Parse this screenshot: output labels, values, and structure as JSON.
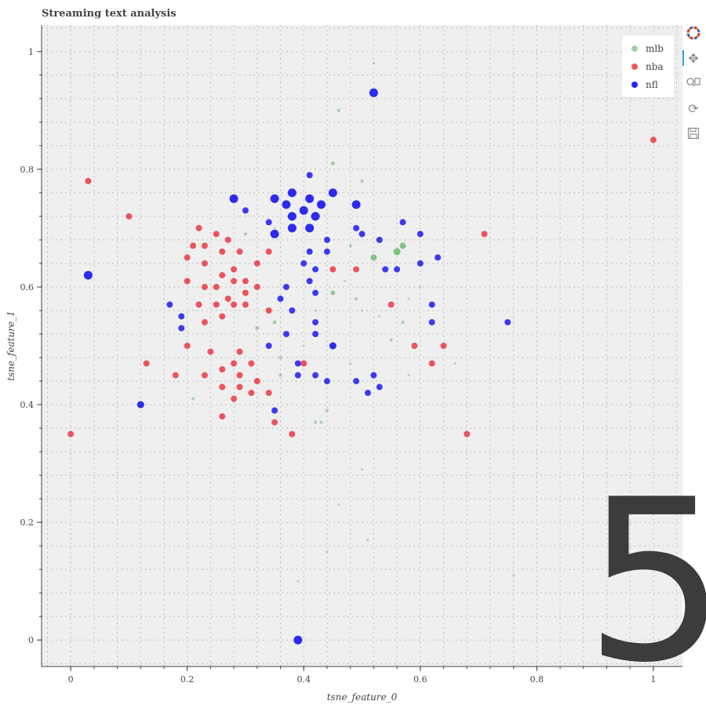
{
  "chart_data": {
    "type": "scatter",
    "title": "Streaming text analysis",
    "xlabel": "tsne_feature_0",
    "ylabel": "tsne_feature_1",
    "xlim": [
      -0.05,
      1.05
    ],
    "ylim": [
      -0.045,
      1.045
    ],
    "x_ticks": [
      "0",
      "0.2",
      "0.4",
      "0.6",
      "0.8",
      "1"
    ],
    "y_ticks": [
      "0",
      "0.2",
      "0.4",
      "0.6",
      "0.8",
      "1"
    ],
    "grid": true,
    "legend_position": "top-right",
    "series": [
      {
        "name": "mlb",
        "color": "#7fbf7f",
        "points": [
          {
            "x": 0.46,
            "y": 0.9,
            "size": 4
          },
          {
            "x": 0.45,
            "y": 0.81,
            "size": 5
          },
          {
            "x": 0.5,
            "y": 0.78,
            "size": 4
          },
          {
            "x": 0.52,
            "y": 0.65,
            "size": 8
          },
          {
            "x": 0.56,
            "y": 0.66,
            "size": 9
          },
          {
            "x": 0.57,
            "y": 0.67,
            "size": 8
          },
          {
            "x": 0.45,
            "y": 0.59,
            "size": 6
          },
          {
            "x": 0.49,
            "y": 0.58,
            "size": 4
          },
          {
            "x": 0.35,
            "y": 0.54,
            "size": 5
          },
          {
            "x": 0.32,
            "y": 0.53,
            "size": 5
          },
          {
            "x": 0.55,
            "y": 0.51,
            "size": 4
          },
          {
            "x": 0.57,
            "y": 0.54,
            "size": 4
          },
          {
            "x": 0.36,
            "y": 0.48,
            "size": 4
          },
          {
            "x": 0.36,
            "y": 0.45,
            "size": 4
          },
          {
            "x": 0.42,
            "y": 0.37,
            "size": 4
          },
          {
            "x": 0.43,
            "y": 0.37,
            "size": 4
          },
          {
            "x": 0.44,
            "y": 0.39,
            "size": 4
          },
          {
            "x": 0.21,
            "y": 0.41,
            "size": 4
          },
          {
            "x": 0.5,
            "y": 0.29,
            "size": 3
          },
          {
            "x": 0.46,
            "y": 0.23,
            "size": 3
          },
          {
            "x": 0.51,
            "y": 0.17,
            "size": 3
          },
          {
            "x": 0.44,
            "y": 0.15,
            "size": 3
          },
          {
            "x": 0.39,
            "y": 0.1,
            "size": 3
          },
          {
            "x": 0.76,
            "y": 0.11,
            "size": 3
          },
          {
            "x": 0.66,
            "y": 0.47,
            "size": 3
          },
          {
            "x": 0.58,
            "y": 0.58,
            "size": 3
          },
          {
            "x": 0.6,
            "y": 0.6,
            "size": 3
          },
          {
            "x": 0.3,
            "y": 0.69,
            "size": 4
          },
          {
            "x": 0.48,
            "y": 0.67,
            "size": 4
          },
          {
            "x": 0.42,
            "y": 0.56,
            "size": 3
          },
          {
            "x": 0.47,
            "y": 0.61,
            "size": 3
          },
          {
            "x": 0.5,
            "y": 0.56,
            "size": 3
          },
          {
            "x": 0.53,
            "y": 0.55,
            "size": 3
          },
          {
            "x": 0.4,
            "y": 0.5,
            "size": 3
          },
          {
            "x": 0.48,
            "y": 0.47,
            "size": 3
          },
          {
            "x": 0.58,
            "y": 0.45,
            "size": 3
          },
          {
            "x": 0.52,
            "y": 0.98,
            "size": 3
          },
          {
            "x": 0.35,
            "y": 0.7,
            "size": 3
          }
        ]
      },
      {
        "name": "nba",
        "color": "#e8484d",
        "points": [
          {
            "x": 0.03,
            "y": 0.78,
            "size": 8
          },
          {
            "x": 0.1,
            "y": 0.72,
            "size": 8
          },
          {
            "x": 0.0,
            "y": 0.35,
            "size": 8
          },
          {
            "x": 0.13,
            "y": 0.47,
            "size": 8
          },
          {
            "x": 0.18,
            "y": 0.45,
            "size": 8
          },
          {
            "x": 1.0,
            "y": 0.85,
            "size": 8
          },
          {
            "x": 0.71,
            "y": 0.69,
            "size": 8
          },
          {
            "x": 0.68,
            "y": 0.35,
            "size": 8
          },
          {
            "x": 0.22,
            "y": 0.7,
            "size": 8
          },
          {
            "x": 0.25,
            "y": 0.69,
            "size": 8
          },
          {
            "x": 0.27,
            "y": 0.68,
            "size": 8
          },
          {
            "x": 0.21,
            "y": 0.67,
            "size": 8
          },
          {
            "x": 0.23,
            "y": 0.67,
            "size": 8
          },
          {
            "x": 0.2,
            "y": 0.65,
            "size": 8
          },
          {
            "x": 0.23,
            "y": 0.64,
            "size": 8
          },
          {
            "x": 0.26,
            "y": 0.66,
            "size": 8
          },
          {
            "x": 0.29,
            "y": 0.66,
            "size": 8
          },
          {
            "x": 0.34,
            "y": 0.66,
            "size": 8
          },
          {
            "x": 0.32,
            "y": 0.64,
            "size": 8
          },
          {
            "x": 0.28,
            "y": 0.63,
            "size": 8
          },
          {
            "x": 0.26,
            "y": 0.62,
            "size": 8
          },
          {
            "x": 0.3,
            "y": 0.61,
            "size": 8
          },
          {
            "x": 0.2,
            "y": 0.61,
            "size": 8
          },
          {
            "x": 0.23,
            "y": 0.6,
            "size": 8
          },
          {
            "x": 0.25,
            "y": 0.6,
            "size": 8
          },
          {
            "x": 0.28,
            "y": 0.61,
            "size": 8
          },
          {
            "x": 0.32,
            "y": 0.6,
            "size": 8
          },
          {
            "x": 0.3,
            "y": 0.59,
            "size": 8
          },
          {
            "x": 0.27,
            "y": 0.58,
            "size": 8
          },
          {
            "x": 0.28,
            "y": 0.57,
            "size": 8
          },
          {
            "x": 0.3,
            "y": 0.57,
            "size": 8
          },
          {
            "x": 0.22,
            "y": 0.57,
            "size": 8
          },
          {
            "x": 0.25,
            "y": 0.57,
            "size": 8
          },
          {
            "x": 0.34,
            "y": 0.56,
            "size": 8
          },
          {
            "x": 0.26,
            "y": 0.55,
            "size": 8
          },
          {
            "x": 0.23,
            "y": 0.54,
            "size": 8
          },
          {
            "x": 0.2,
            "y": 0.5,
            "size": 8
          },
          {
            "x": 0.24,
            "y": 0.49,
            "size": 8
          },
          {
            "x": 0.29,
            "y": 0.49,
            "size": 8
          },
          {
            "x": 0.28,
            "y": 0.47,
            "size": 8
          },
          {
            "x": 0.31,
            "y": 0.47,
            "size": 8
          },
          {
            "x": 0.23,
            "y": 0.45,
            "size": 8
          },
          {
            "x": 0.26,
            "y": 0.46,
            "size": 8
          },
          {
            "x": 0.29,
            "y": 0.45,
            "size": 8
          },
          {
            "x": 0.32,
            "y": 0.44,
            "size": 8
          },
          {
            "x": 0.26,
            "y": 0.43,
            "size": 8
          },
          {
            "x": 0.29,
            "y": 0.43,
            "size": 8
          },
          {
            "x": 0.34,
            "y": 0.42,
            "size": 8
          },
          {
            "x": 0.31,
            "y": 0.42,
            "size": 8
          },
          {
            "x": 0.28,
            "y": 0.41,
            "size": 8
          },
          {
            "x": 0.26,
            "y": 0.38,
            "size": 8
          },
          {
            "x": 0.35,
            "y": 0.37,
            "size": 8
          },
          {
            "x": 0.38,
            "y": 0.35,
            "size": 8
          },
          {
            "x": 0.4,
            "y": 0.47,
            "size": 8
          },
          {
            "x": 0.45,
            "y": 0.63,
            "size": 8
          },
          {
            "x": 0.49,
            "y": 0.63,
            "size": 8
          },
          {
            "x": 0.55,
            "y": 0.57,
            "size": 8
          },
          {
            "x": 0.59,
            "y": 0.5,
            "size": 8
          },
          {
            "x": 0.62,
            "y": 0.47,
            "size": 8
          },
          {
            "x": 0.64,
            "y": 0.5,
            "size": 8
          }
        ]
      },
      {
        "name": "nfl",
        "color": "#2b2bee",
        "points": [
          {
            "x": 0.52,
            "y": 0.93,
            "size": 11
          },
          {
            "x": 0.03,
            "y": 0.62,
            "size": 11
          },
          {
            "x": 0.39,
            "y": 0.0,
            "size": 11
          },
          {
            "x": 0.28,
            "y": 0.75,
            "size": 11
          },
          {
            "x": 0.35,
            "y": 0.75,
            "size": 11
          },
          {
            "x": 0.38,
            "y": 0.76,
            "size": 11
          },
          {
            "x": 0.41,
            "y": 0.75,
            "size": 11
          },
          {
            "x": 0.45,
            "y": 0.76,
            "size": 11
          },
          {
            "x": 0.49,
            "y": 0.74,
            "size": 11
          },
          {
            "x": 0.37,
            "y": 0.74,
            "size": 11
          },
          {
            "x": 0.4,
            "y": 0.73,
            "size": 11
          },
          {
            "x": 0.43,
            "y": 0.74,
            "size": 11
          },
          {
            "x": 0.38,
            "y": 0.72,
            "size": 11
          },
          {
            "x": 0.42,
            "y": 0.72,
            "size": 11
          },
          {
            "x": 0.38,
            "y": 0.7,
            "size": 11
          },
          {
            "x": 0.41,
            "y": 0.7,
            "size": 11
          },
          {
            "x": 0.35,
            "y": 0.69,
            "size": 11
          },
          {
            "x": 0.12,
            "y": 0.4,
            "size": 9
          },
          {
            "x": 0.3,
            "y": 0.73,
            "size": 8
          },
          {
            "x": 0.34,
            "y": 0.71,
            "size": 8
          },
          {
            "x": 0.41,
            "y": 0.79,
            "size": 8
          },
          {
            "x": 0.44,
            "y": 0.68,
            "size": 8
          },
          {
            "x": 0.49,
            "y": 0.7,
            "size": 8
          },
          {
            "x": 0.5,
            "y": 0.69,
            "size": 8
          },
          {
            "x": 0.53,
            "y": 0.68,
            "size": 8
          },
          {
            "x": 0.57,
            "y": 0.71,
            "size": 8
          },
          {
            "x": 0.6,
            "y": 0.69,
            "size": 8
          },
          {
            "x": 0.63,
            "y": 0.65,
            "size": 8
          },
          {
            "x": 0.6,
            "y": 0.64,
            "size": 8
          },
          {
            "x": 0.56,
            "y": 0.63,
            "size": 8
          },
          {
            "x": 0.54,
            "y": 0.63,
            "size": 8
          },
          {
            "x": 0.41,
            "y": 0.66,
            "size": 8
          },
          {
            "x": 0.44,
            "y": 0.66,
            "size": 8
          },
          {
            "x": 0.4,
            "y": 0.64,
            "size": 8
          },
          {
            "x": 0.42,
            "y": 0.63,
            "size": 8
          },
          {
            "x": 0.41,
            "y": 0.61,
            "size": 8
          },
          {
            "x": 0.37,
            "y": 0.6,
            "size": 8
          },
          {
            "x": 0.36,
            "y": 0.58,
            "size": 8
          },
          {
            "x": 0.42,
            "y": 0.59,
            "size": 8
          },
          {
            "x": 0.38,
            "y": 0.56,
            "size": 8
          },
          {
            "x": 0.42,
            "y": 0.54,
            "size": 8
          },
          {
            "x": 0.37,
            "y": 0.52,
            "size": 8
          },
          {
            "x": 0.42,
            "y": 0.52,
            "size": 8
          },
          {
            "x": 0.34,
            "y": 0.5,
            "size": 8
          },
          {
            "x": 0.45,
            "y": 0.5,
            "size": 9
          },
          {
            "x": 0.39,
            "y": 0.47,
            "size": 8
          },
          {
            "x": 0.39,
            "y": 0.45,
            "size": 8
          },
          {
            "x": 0.42,
            "y": 0.45,
            "size": 8
          },
          {
            "x": 0.44,
            "y": 0.44,
            "size": 8
          },
          {
            "x": 0.49,
            "y": 0.44,
            "size": 8
          },
          {
            "x": 0.52,
            "y": 0.45,
            "size": 8
          },
          {
            "x": 0.53,
            "y": 0.43,
            "size": 8
          },
          {
            "x": 0.51,
            "y": 0.42,
            "size": 8
          },
          {
            "x": 0.35,
            "y": 0.39,
            "size": 8
          },
          {
            "x": 0.17,
            "y": 0.57,
            "size": 8
          },
          {
            "x": 0.19,
            "y": 0.55,
            "size": 8
          },
          {
            "x": 0.19,
            "y": 0.53,
            "size": 8
          },
          {
            "x": 0.62,
            "y": 0.57,
            "size": 8
          },
          {
            "x": 0.62,
            "y": 0.54,
            "size": 8
          },
          {
            "x": 0.75,
            "y": 0.54,
            "size": 8
          }
        ]
      }
    ]
  },
  "legend": {
    "items": [
      {
        "label": "mlb",
        "color": "#9fd09f"
      },
      {
        "label": "nba",
        "color": "#f25555"
      },
      {
        "label": "nfl",
        "color": "#2222ff"
      }
    ]
  },
  "toolbar": {
    "icons": [
      "bokeh-logo-icon",
      "pan-icon",
      "box-zoom-icon",
      "reset-icon",
      "save-icon"
    ]
  },
  "overlay_number": "5",
  "colors": {
    "plot_background": "#efefef",
    "grid": "#bdbdbd",
    "axis": "#444444"
  }
}
